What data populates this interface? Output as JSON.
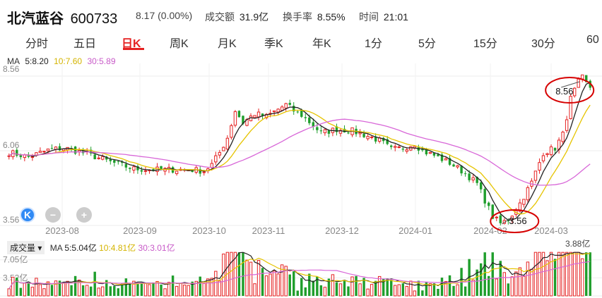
{
  "header": {
    "stock_name": "北汽蓝谷",
    "stock_code": "600733",
    "price_change": "8.17 (0.00%)",
    "turnover_label": "成交额",
    "turnover_value": "31.9亿",
    "rate_label": "换手率",
    "rate_value": "8.55%",
    "time_label": "时间",
    "time_value": "21:01"
  },
  "tabs": [
    "分时",
    "五日",
    "日K",
    "周K",
    "月K",
    "季K",
    "年K",
    "1分",
    "5分",
    "15分",
    "30分",
    "60"
  ],
  "active_tab": 2,
  "ma_legend": {
    "ma_label": "MA",
    "ma5": "5:8.20",
    "ma10": "10:7.60",
    "ma30": "30:5.89"
  },
  "volume_legend": {
    "selector": "成交量",
    "ma_label": "MA",
    "ma5": "5:5.04亿",
    "ma10": "10:4.81亿",
    "ma30": "30:3.01亿"
  },
  "controls": {
    "k_label": "K",
    "zoom_out": "−",
    "zoom_in": "+"
  },
  "colors": {
    "up": "#e52121",
    "down": "#1f9e2c",
    "ma5": "#222222",
    "ma10": "#e6c400",
    "ma30": "#d867d8",
    "annotation": "#d60000",
    "grid": "#eeeeee",
    "axis_text": "#888888"
  },
  "chart_data": {
    "type": "candlestick",
    "x_ticks": [
      "2023-08",
      "2023-09",
      "2023-10",
      "2023-11",
      "2023-12",
      "2024-01",
      "2024-02",
      "2024-03"
    ],
    "y_ticks": [
      "8.56",
      "6.06",
      "3.56"
    ],
    "ylim": [
      3.56,
      8.56
    ],
    "annotations": [
      {
        "label": "8.56",
        "type": "high",
        "value": 8.56
      },
      {
        "label": "3.56",
        "type": "low",
        "value": 3.56
      }
    ],
    "price_path": [
      [
        0,
        6.0
      ],
      [
        5,
        5.85
      ],
      [
        10,
        6.08
      ],
      [
        14,
        6.15
      ],
      [
        16,
        6.1
      ],
      [
        20,
        5.95
      ],
      [
        26,
        5.68
      ],
      [
        32,
        5.45
      ],
      [
        38,
        5.42
      ],
      [
        46,
        5.43
      ],
      [
        50,
        5.38
      ],
      [
        52,
        5.6
      ],
      [
        54,
        6.0
      ],
      [
        56,
        6.5
      ],
      [
        58,
        7.4
      ],
      [
        60,
        7.0
      ],
      [
        63,
        7.3
      ],
      [
        66,
        7.2
      ],
      [
        69,
        7.45
      ],
      [
        71,
        7.6
      ],
      [
        73,
        7.4
      ],
      [
        75,
        7.25
      ],
      [
        78,
        6.9
      ],
      [
        80,
        6.65
      ],
      [
        84,
        6.78
      ],
      [
        88,
        6.72
      ],
      [
        92,
        6.55
      ],
      [
        95,
        6.4
      ],
      [
        98,
        6.1
      ],
      [
        101,
        6.15
      ],
      [
        104,
        6.3
      ],
      [
        106,
        6.05
      ],
      [
        109,
        5.9
      ],
      [
        113,
        5.65
      ],
      [
        117,
        5.3
      ],
      [
        120,
        4.95
      ],
      [
        122,
        4.4
      ],
      [
        124,
        3.85
      ],
      [
        126,
        3.62
      ],
      [
        128,
        3.75
      ],
      [
        131,
        4.3
      ],
      [
        134,
        5.0
      ],
      [
        137,
        6.0
      ],
      [
        140,
        6.15
      ],
      [
        142,
        6.6
      ],
      [
        144,
        7.8
      ],
      [
        146,
        8.35
      ],
      [
        147,
        8.5
      ],
      [
        148,
        8.3
      ],
      [
        149,
        8.17
      ]
    ],
    "volume": {
      "y_ticks": [
        "7.05亿",
        "3.52亿"
      ],
      "ylim": [
        0,
        8.8
      ],
      "peak_label": "3.88亿"
    }
  }
}
